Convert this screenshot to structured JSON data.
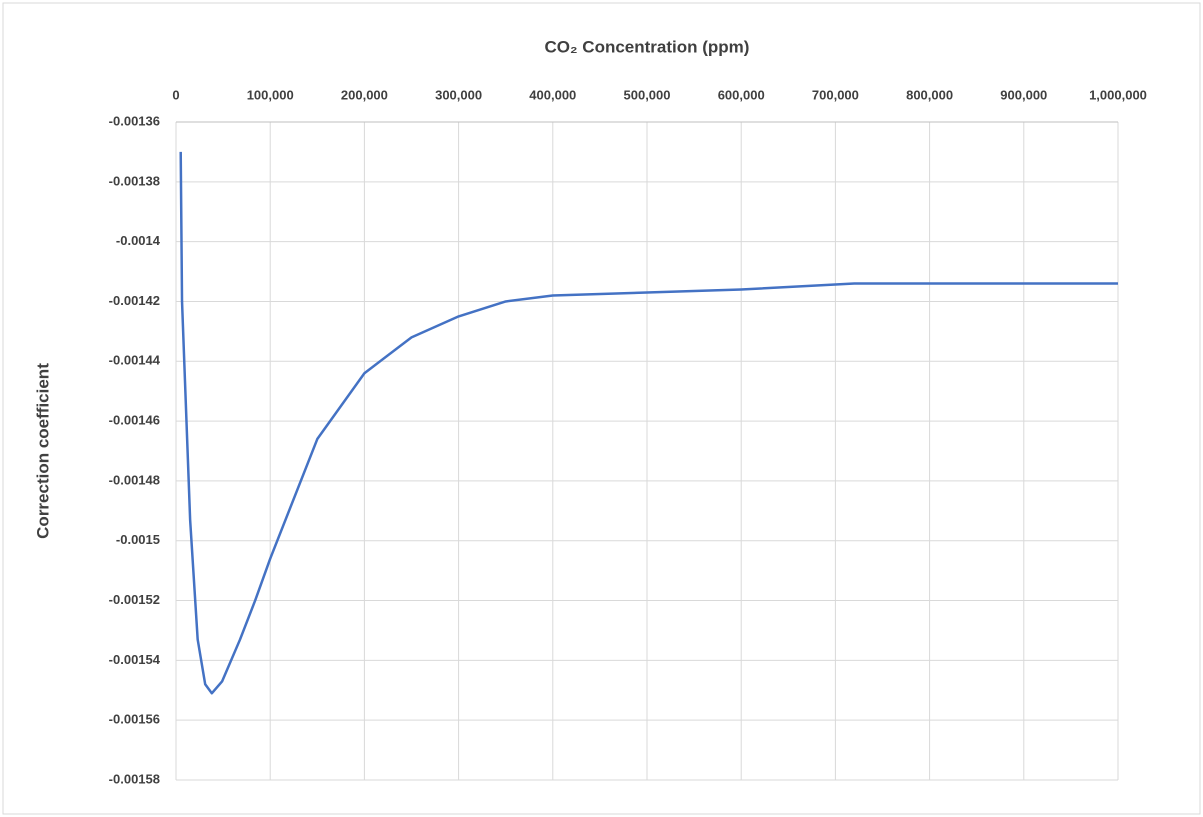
{
  "chart_data": {
    "type": "line",
    "title": "CO₂ Concentration (ppm)",
    "y_label": "Correction coefficient",
    "x": [
      5000,
      6400,
      15000,
      23000,
      31000,
      38000,
      49000,
      68000,
      84000,
      100000,
      150000,
      200000,
      250000,
      300000,
      350000,
      400000,
      500000,
      600000,
      720000,
      1000000
    ],
    "series": [
      {
        "name": "Correction coefficient",
        "color": "#4472c4",
        "values": [
          -0.00137,
          -0.00142,
          -0.001493,
          -0.001533,
          -0.001548,
          -0.001551,
          -0.001547,
          -0.001533,
          -0.00152,
          -0.001506,
          -0.001466,
          -0.001444,
          -0.001432,
          -0.001425,
          -0.00142,
          -0.001418,
          -0.001417,
          -0.001416,
          -0.001414,
          -0.001414
        ]
      }
    ],
    "xlim": [
      0,
      1000000
    ],
    "xticks": [
      0,
      {
        "value": 100000,
        "label": "100,000"
      },
      {
        "value": 200000,
        "label": "200,000"
      },
      {
        "value": 300000,
        "label": "300,000"
      },
      {
        "value": 400000,
        "label": "400,000"
      },
      {
        "value": 500000,
        "label": "500,000"
      },
      {
        "value": 600000,
        "label": "600,000"
      },
      {
        "value": 700000,
        "label": "700,000"
      },
      {
        "value": 800000,
        "label": "800,000"
      },
      {
        "value": 900000,
        "label": "900,000"
      },
      {
        "value": 1000000,
        "label": "1,000,000"
      }
    ],
    "ylim": [
      -0.00158,
      -0.00136
    ],
    "yticks": [
      -0.00136,
      -0.00138,
      -0.0014,
      -0.00142,
      -0.00144,
      -0.00146,
      -0.00148,
      -0.0015,
      -0.00152,
      -0.00154,
      -0.00156,
      -0.00158
    ],
    "grid": true
  }
}
